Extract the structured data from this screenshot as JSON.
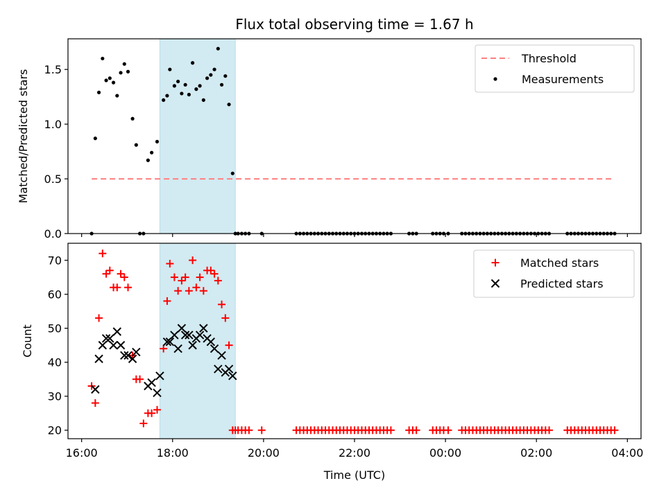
{
  "chart_data": [
    {
      "type": "scatter",
      "title": "Flux total observing time = 1.67 h",
      "xlabel": "",
      "ylabel": "Matched/Predicted stars",
      "xlim": [
        15.7,
        28.3
      ],
      "ylim": [
        0,
        1.78
      ],
      "yticks": [
        0.0,
        0.5,
        1.0,
        1.5
      ],
      "ytick_labels": [
        "0.0",
        "0.5",
        "1.0",
        "1.5"
      ],
      "grid": false,
      "legend_position": "top-right",
      "shaded_interval": {
        "x": [
          17.72,
          19.38
        ],
        "color": "#add8e6"
      },
      "threshold": {
        "name": "Threshold",
        "y": 0.5,
        "x": [
          16.22,
          27.72
        ],
        "color": "#ff7f7f",
        "style": "dashed"
      },
      "series": [
        {
          "name": "Measurements",
          "color": "#000000",
          "marker": "dot",
          "x": [
            16.22,
            16.3,
            16.38,
            16.46,
            16.54,
            16.62,
            16.7,
            16.78,
            16.86,
            16.94,
            17.02,
            17.12,
            17.2,
            17.28,
            17.36,
            17.46,
            17.54,
            17.66,
            17.8,
            17.88,
            17.94,
            18.04,
            18.12,
            18.2,
            18.28,
            18.36,
            18.44,
            18.52,
            18.6,
            18.68,
            18.76,
            18.84,
            18.92,
            19.0,
            19.08,
            19.16,
            19.24,
            19.32,
            19.38,
            19.44,
            19.52,
            19.6,
            19.68,
            19.96,
            20.72,
            20.8,
            20.88,
            20.96,
            21.04,
            21.12,
            21.2,
            21.28,
            21.36,
            21.44,
            21.52,
            21.6,
            21.68,
            21.76,
            21.84,
            21.92,
            22.0,
            22.08,
            22.16,
            22.24,
            22.32,
            22.4,
            22.48,
            22.56,
            22.64,
            22.72,
            22.8,
            23.2,
            23.28,
            23.36,
            23.72,
            23.8,
            23.88,
            23.96,
            24.06,
            24.36,
            24.44,
            24.52,
            24.6,
            24.68,
            24.76,
            24.84,
            24.92,
            25.0,
            25.08,
            25.16,
            25.24,
            25.32,
            25.4,
            25.48,
            25.56,
            25.64,
            25.72,
            25.8,
            25.88,
            25.96,
            26.04,
            26.12,
            26.2,
            26.28,
            26.68,
            26.76,
            26.84,
            26.92,
            27.0,
            27.08,
            27.16,
            27.24,
            27.32,
            27.4,
            27.48,
            27.56,
            27.64,
            27.72
          ],
          "y": [
            0.0,
            0.87,
            1.29,
            1.6,
            1.4,
            1.42,
            1.38,
            1.26,
            1.47,
            1.55,
            1.48,
            1.05,
            0.81,
            0.0,
            0.0,
            0.67,
            0.74,
            0.84,
            1.22,
            1.26,
            1.5,
            1.35,
            1.39,
            1.28,
            1.36,
            1.27,
            1.56,
            1.32,
            1.35,
            1.22,
            1.42,
            1.45,
            1.5,
            1.69,
            1.36,
            1.44,
            1.18,
            0.55,
            0.0,
            0.0,
            0.0,
            0.0,
            0.0,
            0.0,
            0.0,
            0.0,
            0.0,
            0.0,
            0.0,
            0.0,
            0.0,
            0.0,
            0.0,
            0.0,
            0.0,
            0.0,
            0.0,
            0.0,
            0.0,
            0.0,
            0.0,
            0.0,
            0.0,
            0.0,
            0.0,
            0.0,
            0.0,
            0.0,
            0.0,
            0.0,
            0.0,
            0.0,
            0.0,
            0.0,
            0.0,
            0.0,
            0.0,
            0.0,
            0.0,
            0.0,
            0.0,
            0.0,
            0.0,
            0.0,
            0.0,
            0.0,
            0.0,
            0.0,
            0.0,
            0.0,
            0.0,
            0.0,
            0.0,
            0.0,
            0.0,
            0.0,
            0.0,
            0.0,
            0.0,
            0.0,
            0.0,
            0.0,
            0.0,
            0.0,
            0.0,
            0.0,
            0.0,
            0.0,
            0.0,
            0.0,
            0.0,
            0.0,
            0.0,
            0.0,
            0.0,
            0.0,
            0.0,
            0.0
          ]
        }
      ]
    },
    {
      "type": "scatter",
      "xlabel": "Time (UTC)",
      "ylabel": "Count",
      "xlim": [
        15.7,
        28.3
      ],
      "ylim": [
        17.5,
        75
      ],
      "yticks": [
        20,
        30,
        40,
        50,
        60,
        70
      ],
      "ytick_labels": [
        "20",
        "30",
        "40",
        "50",
        "60",
        "70"
      ],
      "xticks": [
        16,
        18,
        20,
        22,
        24,
        26,
        28
      ],
      "xtick_labels": [
        "16:00",
        "18:00",
        "20:00",
        "22:00",
        "00:00",
        "02:00",
        "04:00"
      ],
      "grid": false,
      "legend_position": "top-right",
      "shaded_interval": {
        "x": [
          17.72,
          19.38
        ],
        "color": "#add8e6"
      },
      "series": [
        {
          "name": "Matched stars",
          "color": "#ff0000",
          "marker": "plus",
          "x": [
            16.22,
            16.3,
            16.38,
            16.46,
            16.54,
            16.62,
            16.7,
            16.78,
            16.86,
            16.94,
            17.02,
            17.12,
            17.2,
            17.28,
            17.36,
            17.46,
            17.54,
            17.66,
            17.8,
            17.88,
            17.94,
            18.04,
            18.12,
            18.2,
            18.28,
            18.36,
            18.44,
            18.52,
            18.6,
            18.68,
            18.76,
            18.84,
            18.92,
            19.0,
            19.08,
            19.16,
            19.24,
            19.32,
            19.38,
            19.44,
            19.52,
            19.6,
            19.68,
            19.96,
            20.72,
            20.8,
            20.88,
            20.96,
            21.04,
            21.12,
            21.2,
            21.28,
            21.36,
            21.44,
            21.52,
            21.6,
            21.68,
            21.76,
            21.84,
            21.92,
            22.0,
            22.08,
            22.16,
            22.24,
            22.32,
            22.4,
            22.48,
            22.56,
            22.64,
            22.72,
            22.8,
            23.2,
            23.28,
            23.36,
            23.72,
            23.8,
            23.88,
            23.96,
            24.06,
            24.36,
            24.44,
            24.52,
            24.6,
            24.68,
            24.76,
            24.84,
            24.92,
            25.0,
            25.08,
            25.16,
            25.24,
            25.32,
            25.4,
            25.48,
            25.56,
            25.64,
            25.72,
            25.8,
            25.88,
            25.96,
            26.04,
            26.12,
            26.2,
            26.28,
            26.68,
            26.76,
            26.84,
            26.92,
            27.0,
            27.08,
            27.16,
            27.24,
            27.32,
            27.4,
            27.48,
            27.56,
            27.64,
            27.72
          ],
          "y": [
            33,
            28,
            53,
            72,
            66,
            67,
            62,
            62,
            66,
            65,
            62,
            42,
            35,
            35,
            22,
            25,
            25,
            26,
            44,
            58,
            69,
            65,
            61,
            64,
            65,
            61,
            70,
            62,
            65,
            61,
            67,
            67,
            66,
            64,
            57,
            53,
            45,
            20,
            20,
            20,
            20,
            20,
            20,
            20,
            20,
            20,
            20,
            20,
            20,
            20,
            20,
            20,
            20,
            20,
            20,
            20,
            20,
            20,
            20,
            20,
            20,
            20,
            20,
            20,
            20,
            20,
            20,
            20,
            20,
            20,
            20,
            20,
            20,
            20,
            20,
            20,
            20,
            20,
            20,
            20,
            20,
            20,
            20,
            20,
            20,
            20,
            20,
            20,
            20,
            20,
            20,
            20,
            20,
            20,
            20,
            20,
            20,
            20,
            20,
            20,
            20,
            20,
            20,
            20,
            20,
            20,
            20,
            20,
            20,
            20,
            20,
            20,
            20,
            20,
            20,
            20,
            20,
            20
          ]
        },
        {
          "name": "Predicted stars",
          "color": "#000000",
          "marker": "x",
          "x": [
            16.3,
            16.38,
            16.46,
            16.54,
            16.62,
            16.7,
            16.78,
            16.86,
            16.94,
            17.02,
            17.12,
            17.2,
            17.46,
            17.54,
            17.66,
            17.72,
            17.88,
            17.94,
            18.04,
            18.12,
            18.2,
            18.28,
            18.36,
            18.44,
            18.52,
            18.6,
            18.68,
            18.76,
            18.84,
            18.92,
            19.0,
            19.08,
            19.16,
            19.24,
            19.32
          ],
          "y": [
            32,
            41,
            45,
            47,
            47,
            45,
            49,
            45,
            42,
            42,
            41,
            43,
            33,
            34,
            31,
            36,
            46,
            46,
            48,
            44,
            50,
            48,
            48,
            45,
            47,
            48,
            50,
            47,
            46,
            44,
            38,
            42,
            37,
            38,
            36
          ]
        }
      ]
    }
  ]
}
